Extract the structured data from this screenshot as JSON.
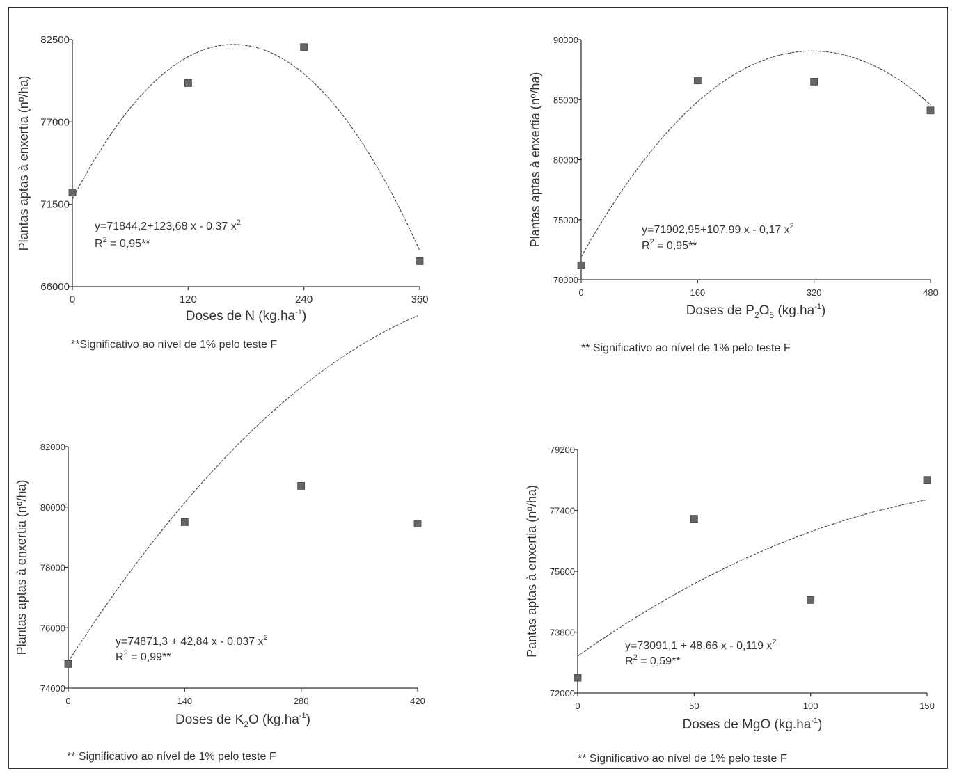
{
  "chart_data": [
    {
      "type": "scatter",
      "x_ticks": [
        0,
        120,
        240,
        360
      ],
      "y_ticks": [
        66000,
        71500,
        77000,
        82500
      ],
      "y_tick_labels": [
        "66000",
        "71500",
        "77000",
        "82500"
      ],
      "xlim": [
        0,
        360
      ],
      "ylim": [
        66000,
        82500
      ],
      "ylabel": "Plantas aptas à enxertia (nº/ha)",
      "xlabel_parts": {
        "pre": "Doses de N (kg.ha",
        "sup": "-1",
        "post": ")"
      },
      "x": [
        0,
        120,
        240,
        360
      ],
      "y": [
        72300,
        79600,
        82000,
        67700
      ],
      "fit": {
        "a": 71844.2,
        "b": 123.68,
        "c": -0.37
      },
      "equation": {
        "pre": "y=71844,2+123,68 x - 0,37 x",
        "sup": "2"
      },
      "r2": {
        "pre": "R",
        "sup": "2",
        "post": " = 0,95**"
      },
      "footnote": "**Significativo ao nível de 1% pelo teste F"
    },
    {
      "type": "scatter",
      "x_ticks": [
        0,
        160,
        320,
        480
      ],
      "y_ticks": [
        70000,
        75000,
        80000,
        85000,
        90000
      ],
      "y_tick_labels": [
        "70000",
        "75000",
        "80000",
        "85000",
        "90000"
      ],
      "xlim": [
        0,
        480
      ],
      "ylim": [
        70000,
        90000
      ],
      "ylabel": "Plantas aptas à enxertia (nº/ha)",
      "xlabel_parts": {
        "pre": "Doses de P",
        "sub": "2",
        "mid": "O",
        "sub2": "5",
        "post": " (kg.ha",
        "sup": "-1",
        "end": ")"
      },
      "x": [
        0,
        160,
        320,
        480
      ],
      "y": [
        71200,
        86600,
        86500,
        84100
      ],
      "fit": {
        "a": 71902.95,
        "b": 107.99,
        "c": -0.17
      },
      "equation": {
        "pre": "y=71902,95+107,99 x - 0,17 x",
        "sup": "2"
      },
      "r2": {
        "pre": "R",
        "sup": "2",
        "post": " = 0,95**"
      },
      "footnote": "** Significativo ao nível de 1% pelo teste F"
    },
    {
      "type": "scatter",
      "x_ticks": [
        0,
        140,
        280,
        420
      ],
      "y_ticks": [
        74000,
        76000,
        78000,
        80000,
        82000
      ],
      "y_tick_labels": [
        "74000",
        "76000",
        "78000",
        "80000",
        "82000"
      ],
      "xlim": [
        0,
        420
      ],
      "ylim": [
        74000,
        82000
      ],
      "ylabel": "Plantas aptas à enxertia (nº/ha)",
      "xlabel_parts": {
        "pre": "Doses de K",
        "sub": "2",
        "post": "O (kg.ha",
        "sup": "-1",
        "end": ")"
      },
      "x": [
        0,
        140,
        280,
        420
      ],
      "y": [
        74800,
        79500,
        80700,
        79450
      ],
      "fit": {
        "a": 74871.3,
        "b": 42.84,
        "c": -0.037
      },
      "equation": {
        "pre": "y=74871,3 + 42,84 x - 0,037 x",
        "sup": "2"
      },
      "r2": {
        "pre": "R",
        "sup": "2",
        "post": " = 0,99**"
      },
      "footnote": "** Significativo ao nível de 1% pelo teste F"
    },
    {
      "type": "scatter",
      "x_ticks": [
        0,
        50,
        100,
        150
      ],
      "y_ticks": [
        72000,
        73800,
        75600,
        77400,
        79200
      ],
      "y_tick_labels": [
        "72000",
        "73800",
        "75600",
        "77400",
        "79200"
      ],
      "xlim": [
        0,
        150
      ],
      "ylim": [
        72000,
        79200
      ],
      "ylabel": "Pantas aptas à enxertia (nº/ha)",
      "xlabel_parts": {
        "pre": "Doses de MgO (kg.ha",
        "sup": "-1",
        "post": ")"
      },
      "x": [
        0,
        50,
        100,
        150
      ],
      "y": [
        72450,
        77150,
        74750,
        78300
      ],
      "fit": {
        "a": 73091.1,
        "b": 48.66,
        "c": -0.119
      },
      "equation": {
        "pre": "y=73091,1 + 48,66 x - 0,119 x",
        "sup": "2"
      },
      "r2": {
        "pre": "R",
        "sup": "2",
        "post": " = 0,59**"
      },
      "footnote": "** Significativo ao nível de 1% pelo teste F"
    }
  ]
}
